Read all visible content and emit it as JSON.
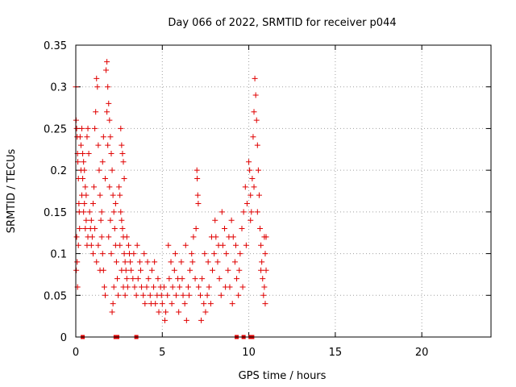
{
  "chart_data": {
    "type": "scatter",
    "title": "Day 066 of 2022, SRMTID for receiver p044",
    "xlabel": "GPS time / hours",
    "ylabel": "SRMTID / TECUs",
    "xlim": [
      0,
      24
    ],
    "ylim": [
      0,
      0.35
    ],
    "xticks": [
      0,
      5,
      10,
      15,
      20
    ],
    "xtick_labels": [
      "0",
      "5",
      "10",
      "15",
      "20"
    ],
    "yticks": [
      0,
      0.05,
      0.1,
      0.15,
      0.2,
      0.25,
      0.3,
      0.35
    ],
    "ytick_labels": [
      "0",
      "0.05",
      "0.1",
      "0.15",
      "0.2",
      "0.25",
      "0.3",
      "0.35"
    ],
    "grid": true,
    "marker": "+",
    "color": "#e00000",
    "series": [
      {
        "name": "SRMTID",
        "points": [
          [
            0.0,
            0.3
          ],
          [
            0.02,
            0.26
          ],
          [
            0.05,
            0.25
          ],
          [
            0.08,
            0.24
          ],
          [
            0.1,
            0.22
          ],
          [
            0.12,
            0.21
          ],
          [
            0.15,
            0.19
          ],
          [
            0.18,
            0.16
          ],
          [
            0.2,
            0.15
          ],
          [
            0.05,
            0.12
          ],
          [
            0.08,
            0.09
          ],
          [
            0.1,
            0.06
          ],
          [
            0.03,
            0.08
          ],
          [
            0.15,
            0.11
          ],
          [
            0.22,
            0.13
          ],
          [
            0.25,
            0.24
          ],
          [
            0.3,
            0.23
          ],
          [
            0.35,
            0.25
          ],
          [
            0.4,
            0.22
          ],
          [
            0.45,
            0.21
          ],
          [
            0.5,
            0.2
          ],
          [
            0.55,
            0.18
          ],
          [
            0.6,
            0.17
          ],
          [
            0.65,
            0.24
          ],
          [
            0.7,
            0.25
          ],
          [
            0.75,
            0.22
          ],
          [
            0.3,
            0.2
          ],
          [
            0.4,
            0.19
          ],
          [
            0.5,
            0.16
          ],
          [
            0.6,
            0.14
          ],
          [
            0.7,
            0.12
          ],
          [
            0.35,
            0.17
          ],
          [
            0.45,
            0.15
          ],
          [
            0.55,
            0.13
          ],
          [
            0.65,
            0.11
          ],
          [
            0.8,
            0.15
          ],
          [
            0.85,
            0.13
          ],
          [
            0.9,
            0.14
          ],
          [
            0.95,
            0.12
          ],
          [
            1.0,
            0.16
          ],
          [
            1.05,
            0.18
          ],
          [
            1.1,
            0.25
          ],
          [
            1.15,
            0.27
          ],
          [
            1.2,
            0.31
          ],
          [
            1.25,
            0.3
          ],
          [
            1.3,
            0.23
          ],
          [
            1.35,
            0.2
          ],
          [
            1.4,
            0.17
          ],
          [
            1.45,
            0.14
          ],
          [
            1.5,
            0.12
          ],
          [
            1.55,
            0.1
          ],
          [
            1.6,
            0.08
          ],
          [
            1.65,
            0.06
          ],
          [
            1.7,
            0.05
          ],
          [
            0.9,
            0.11
          ],
          [
            1.0,
            0.1
          ],
          [
            1.1,
            0.13
          ],
          [
            1.2,
            0.09
          ],
          [
            1.3,
            0.11
          ],
          [
            1.4,
            0.08
          ],
          [
            1.5,
            0.15
          ],
          [
            1.55,
            0.21
          ],
          [
            1.6,
            0.24
          ],
          [
            1.7,
            0.19
          ],
          [
            1.75,
            0.32
          ],
          [
            1.8,
            0.33
          ],
          [
            1.85,
            0.3
          ],
          [
            1.9,
            0.28
          ],
          [
            1.95,
            0.26
          ],
          [
            2.0,
            0.24
          ],
          [
            2.05,
            0.22
          ],
          [
            2.1,
            0.2
          ],
          [
            2.15,
            0.17
          ],
          [
            2.2,
            0.15
          ],
          [
            2.25,
            0.13
          ],
          [
            2.3,
            0.11
          ],
          [
            2.35,
            0.09
          ],
          [
            2.4,
            0.07
          ],
          [
            2.45,
            0.05
          ],
          [
            2.1,
            0.03
          ],
          [
            2.15,
            0.04
          ],
          [
            1.9,
            0.12
          ],
          [
            2.0,
            0.14
          ],
          [
            2.05,
            0.1
          ],
          [
            2.2,
            0.06
          ],
          [
            2.3,
            0.16
          ],
          [
            1.8,
            0.27
          ],
          [
            1.85,
            0.23
          ],
          [
            1.95,
            0.18
          ],
          [
            2.5,
            0.18
          ],
          [
            2.55,
            0.17
          ],
          [
            2.6,
            0.15
          ],
          [
            2.65,
            0.14
          ],
          [
            2.7,
            0.13
          ],
          [
            2.75,
            0.12
          ],
          [
            2.8,
            0.1
          ],
          [
            2.85,
            0.09
          ],
          [
            2.9,
            0.08
          ],
          [
            2.95,
            0.07
          ],
          [
            3.0,
            0.06
          ],
          [
            2.6,
            0.25
          ],
          [
            2.65,
            0.23
          ],
          [
            2.7,
            0.22
          ],
          [
            2.75,
            0.21
          ],
          [
            2.8,
            0.19
          ],
          [
            2.55,
            0.11
          ],
          [
            2.65,
            0.08
          ],
          [
            2.75,
            0.06
          ],
          [
            2.85,
            0.05
          ],
          [
            2.95,
            0.12
          ],
          [
            3.05,
            0.11
          ],
          [
            3.1,
            0.1
          ],
          [
            3.15,
            0.09
          ],
          [
            3.2,
            0.08
          ],
          [
            3.3,
            0.07
          ],
          [
            3.4,
            0.06
          ],
          [
            3.5,
            0.05
          ],
          [
            3.6,
            0.07
          ],
          [
            3.7,
            0.09
          ],
          [
            3.8,
            0.06
          ],
          [
            3.9,
            0.05
          ],
          [
            4.0,
            0.04
          ],
          [
            4.1,
            0.06
          ],
          [
            4.2,
            0.07
          ],
          [
            4.3,
            0.05
          ],
          [
            4.4,
            0.08
          ],
          [
            4.5,
            0.06
          ],
          [
            4.6,
            0.04
          ],
          [
            4.7,
            0.05
          ],
          [
            4.8,
            0.03
          ],
          [
            4.9,
            0.06
          ],
          [
            3.35,
            0.1
          ],
          [
            3.55,
            0.11
          ],
          [
            3.75,
            0.08
          ],
          [
            3.95,
            0.1
          ],
          [
            4.15,
            0.09
          ],
          [
            4.35,
            0.04
          ],
          [
            4.55,
            0.09
          ],
          [
            4.75,
            0.07
          ],
          [
            4.95,
            0.05
          ],
          [
            5.0,
            0.04
          ],
          [
            5.1,
            0.06
          ],
          [
            5.2,
            0.03
          ],
          [
            5.3,
            0.05
          ],
          [
            5.4,
            0.07
          ],
          [
            5.5,
            0.09
          ],
          [
            5.6,
            0.06
          ],
          [
            5.7,
            0.08
          ],
          [
            5.8,
            0.05
          ],
          [
            5.9,
            0.07
          ],
          [
            6.0,
            0.06
          ],
          [
            6.1,
            0.09
          ],
          [
            6.2,
            0.05
          ],
          [
            6.3,
            0.04
          ],
          [
            6.4,
            0.02
          ],
          [
            6.5,
            0.06
          ],
          [
            6.6,
            0.08
          ],
          [
            6.7,
            0.1
          ],
          [
            6.8,
            0.12
          ],
          [
            6.9,
            0.07
          ],
          [
            5.15,
            0.02
          ],
          [
            5.35,
            0.11
          ],
          [
            5.55,
            0.04
          ],
          [
            5.75,
            0.1
          ],
          [
            5.95,
            0.03
          ],
          [
            6.15,
            0.07
          ],
          [
            6.35,
            0.11
          ],
          [
            6.55,
            0.05
          ],
          [
            6.75,
            0.09
          ],
          [
            6.95,
            0.13
          ],
          [
            7.0,
            0.2
          ],
          [
            7.02,
            0.19
          ],
          [
            7.05,
            0.17
          ],
          [
            7.08,
            0.16
          ],
          [
            7.1,
            0.06
          ],
          [
            7.2,
            0.05
          ],
          [
            7.3,
            0.07
          ],
          [
            7.4,
            0.04
          ],
          [
            7.5,
            0.03
          ],
          [
            7.6,
            0.05
          ],
          [
            7.7,
            0.06
          ],
          [
            7.8,
            0.04
          ],
          [
            7.9,
            0.08
          ],
          [
            8.0,
            0.1
          ],
          [
            8.1,
            0.12
          ],
          [
            8.2,
            0.09
          ],
          [
            8.3,
            0.07
          ],
          [
            8.4,
            0.05
          ],
          [
            8.5,
            0.11
          ],
          [
            8.6,
            0.13
          ],
          [
            8.7,
            0.1
          ],
          [
            8.8,
            0.08
          ],
          [
            8.9,
            0.06
          ],
          [
            7.25,
            0.02
          ],
          [
            7.45,
            0.1
          ],
          [
            7.65,
            0.09
          ],
          [
            7.85,
            0.12
          ],
          [
            8.05,
            0.14
          ],
          [
            8.25,
            0.11
          ],
          [
            8.45,
            0.15
          ],
          [
            8.65,
            0.06
          ],
          [
            8.85,
            0.12
          ],
          [
            9.0,
            0.14
          ],
          [
            9.1,
            0.12
          ],
          [
            9.2,
            0.09
          ],
          [
            9.3,
            0.07
          ],
          [
            9.4,
            0.05
          ],
          [
            9.5,
            0.1
          ],
          [
            9.6,
            0.13
          ],
          [
            9.7,
            0.15
          ],
          [
            9.8,
            0.18
          ],
          [
            9.9,
            0.16
          ],
          [
            9.05,
            0.04
          ],
          [
            9.25,
            0.11
          ],
          [
            9.45,
            0.08
          ],
          [
            9.65,
            0.06
          ],
          [
            9.85,
            0.11
          ],
          [
            10.0,
            0.21
          ],
          [
            10.05,
            0.2
          ],
          [
            10.1,
            0.17
          ],
          [
            10.15,
            0.15
          ],
          [
            10.2,
            0.19
          ],
          [
            10.25,
            0.24
          ],
          [
            10.3,
            0.27
          ],
          [
            10.35,
            0.31
          ],
          [
            10.4,
            0.29
          ],
          [
            10.45,
            0.26
          ],
          [
            10.5,
            0.23
          ],
          [
            10.55,
            0.2
          ],
          [
            10.6,
            0.17
          ],
          [
            10.65,
            0.13
          ],
          [
            10.7,
            0.11
          ],
          [
            10.75,
            0.09
          ],
          [
            10.8,
            0.07
          ],
          [
            10.85,
            0.05
          ],
          [
            10.9,
            0.12
          ],
          [
            10.95,
            0.1
          ],
          [
            11.0,
            0.08
          ],
          [
            11.0,
            0.12
          ],
          [
            10.1,
            0.14
          ],
          [
            10.3,
            0.18
          ],
          [
            10.5,
            0.15
          ],
          [
            10.7,
            0.08
          ],
          [
            10.9,
            0.06
          ],
          [
            10.95,
            0.04
          ]
        ]
      }
    ],
    "gap_markers_x": [
      0.4,
      2.3,
      2.4,
      3.5,
      9.3,
      9.7,
      10.1,
      10.2
    ]
  }
}
